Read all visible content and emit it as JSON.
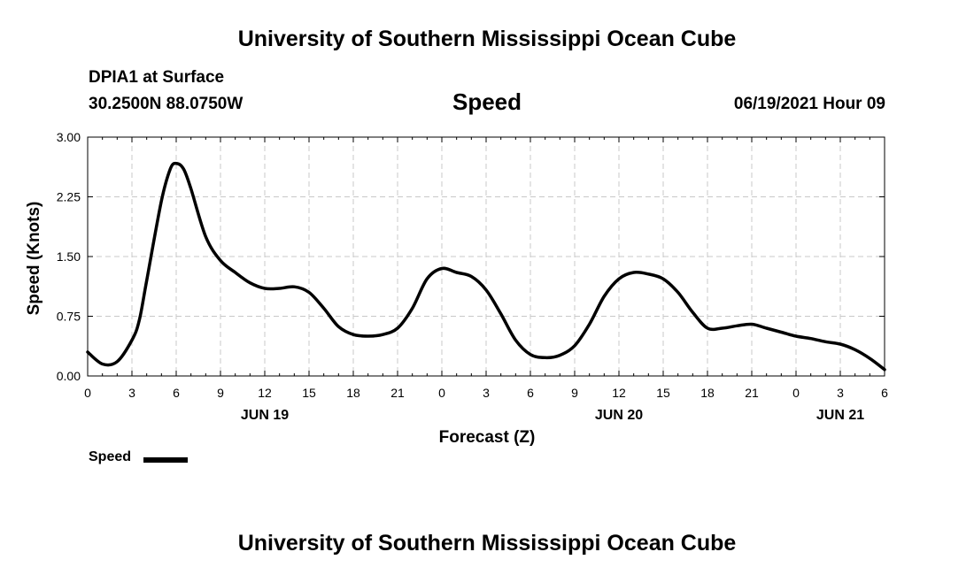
{
  "header": {
    "top_title": "University of Southern Mississippi Ocean Cube",
    "station": "DPIA1 at Surface",
    "coords": "30.2500N  88.0750W",
    "chart_title": "Speed",
    "timestamp": "06/19/2021 Hour 09",
    "bottom_title": "University of Southern Mississippi Ocean Cube"
  },
  "legend": {
    "label": "Speed"
  },
  "chart_data": {
    "type": "line",
    "title": "Speed",
    "xlabel": "Forecast (Z)",
    "ylabel": "Speed (Knots)",
    "xlim": [
      0,
      54
    ],
    "ylim": [
      0,
      3
    ],
    "grid": true,
    "x_ticks": [
      0,
      3,
      6,
      9,
      12,
      15,
      18,
      21,
      24,
      27,
      30,
      33,
      36,
      39,
      42,
      45,
      48,
      51,
      54
    ],
    "x_tick_labels": [
      "0",
      "3",
      "6",
      "9",
      "12",
      "15",
      "18",
      "21",
      "0",
      "3",
      "6",
      "9",
      "12",
      "15",
      "18",
      "21",
      "0",
      "3",
      "6"
    ],
    "day_labels": [
      {
        "hour": 12,
        "label": "JUN 19"
      },
      {
        "hour": 36,
        "label": "JUN 20"
      },
      {
        "hour": 51,
        "label": "JUN 21"
      }
    ],
    "y_ticks": [
      0,
      0.75,
      1.5,
      2.25,
      3.0
    ],
    "y_tick_labels": [
      "0.00",
      "0.75",
      "1.50",
      "2.25",
      "3.00"
    ],
    "series": [
      {
        "name": "Speed",
        "color": "#000000",
        "x": [
          0,
          1,
          2,
          3,
          3.5,
          4,
          5,
          5.6,
          6,
          6.5,
          7,
          8,
          9,
          10,
          11,
          12,
          13,
          14,
          15,
          16,
          17,
          18,
          19,
          20,
          21,
          22,
          23,
          24,
          25,
          26,
          27,
          28,
          29,
          30,
          31,
          32,
          33,
          34,
          35,
          36,
          37,
          38,
          39,
          40,
          41,
          42,
          43,
          44,
          45,
          46,
          47,
          48,
          49,
          50,
          51,
          52,
          53,
          54
        ],
        "values": [
          0.3,
          0.15,
          0.18,
          0.45,
          0.7,
          1.2,
          2.2,
          2.6,
          2.67,
          2.6,
          2.35,
          1.75,
          1.45,
          1.3,
          1.17,
          1.1,
          1.1,
          1.12,
          1.05,
          0.85,
          0.62,
          0.52,
          0.5,
          0.52,
          0.6,
          0.85,
          1.22,
          1.35,
          1.3,
          1.25,
          1.08,
          0.78,
          0.45,
          0.27,
          0.23,
          0.26,
          0.38,
          0.65,
          1.0,
          1.22,
          1.3,
          1.28,
          1.22,
          1.05,
          0.8,
          0.6,
          0.6,
          0.63,
          0.65,
          0.6,
          0.55,
          0.5,
          0.47,
          0.43,
          0.4,
          0.33,
          0.22,
          0.08
        ]
      }
    ]
  }
}
